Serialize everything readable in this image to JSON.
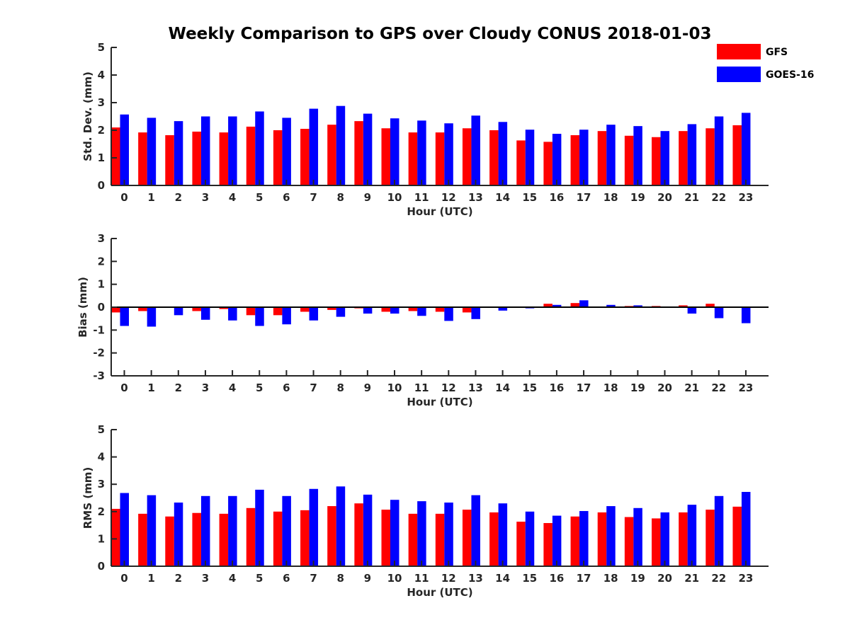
{
  "title": "Weekly Comparison to GPS over Cloudy CONUS 2018-01-03",
  "colors": {
    "GFS": "#ff0000",
    "GOES-16": "#0000ff",
    "axis": "#262626"
  },
  "legend": {
    "placement": "top-right",
    "entries": [
      "GFS",
      "GOES-16"
    ]
  },
  "chart_data": [
    {
      "type": "bar",
      "xlabel": "Hour (UTC)",
      "ylabel": "Std. Dev. (mm)",
      "ylim": [
        0,
        5
      ],
      "yticks": [
        0,
        1,
        2,
        3,
        4,
        5
      ],
      "categories": [
        "0",
        "1",
        "2",
        "3",
        "4",
        "5",
        "6",
        "7",
        "8",
        "9",
        "10",
        "11",
        "12",
        "13",
        "14",
        "15",
        "16",
        "17",
        "18",
        "19",
        "20",
        "21",
        "22",
        "23"
      ],
      "series": [
        {
          "name": "GFS",
          "values": [
            2.1,
            1.92,
            1.82,
            1.95,
            1.92,
            2.13,
            2.0,
            2.05,
            2.2,
            2.33,
            2.07,
            1.92,
            1.92,
            2.07,
            2.0,
            1.63,
            1.58,
            1.82,
            1.97,
            1.8,
            1.75,
            1.97,
            2.07,
            2.18
          ]
        },
        {
          "name": "GOES-16",
          "values": [
            2.57,
            2.45,
            2.33,
            2.5,
            2.5,
            2.68,
            2.45,
            2.78,
            2.88,
            2.6,
            2.43,
            2.35,
            2.25,
            2.53,
            2.3,
            2.02,
            1.87,
            2.02,
            2.2,
            2.15,
            1.97,
            2.22,
            2.5,
            2.63
          ]
        }
      ]
    },
    {
      "type": "bar",
      "xlabel": "Hour (UTC)",
      "ylabel": "Bias (mm)",
      "ylim": [
        -3,
        3
      ],
      "yticks": [
        -3,
        -2,
        -1,
        0,
        1,
        2,
        3
      ],
      "categories": [
        "0",
        "1",
        "2",
        "3",
        "4",
        "5",
        "6",
        "7",
        "8",
        "9",
        "10",
        "11",
        "12",
        "13",
        "14",
        "15",
        "16",
        "17",
        "18",
        "19",
        "20",
        "21",
        "22",
        "23"
      ],
      "series": [
        {
          "name": "GFS",
          "values": [
            -0.23,
            -0.17,
            -0.03,
            -0.17,
            -0.08,
            -0.35,
            -0.35,
            -0.2,
            -0.12,
            -0.05,
            -0.2,
            -0.17,
            -0.2,
            -0.23,
            -0.02,
            0.02,
            0.15,
            0.18,
            -0.02,
            0.05,
            0.05,
            0.08,
            0.15,
            0.02
          ]
        },
        {
          "name": "GOES-16",
          "values": [
            -0.82,
            -0.85,
            -0.35,
            -0.55,
            -0.58,
            -0.82,
            -0.75,
            -0.58,
            -0.42,
            -0.28,
            -0.28,
            -0.38,
            -0.6,
            -0.52,
            -0.15,
            -0.05,
            0.1,
            0.3,
            0.1,
            0.08,
            -0.02,
            -0.28,
            -0.48,
            -0.7
          ]
        }
      ]
    },
    {
      "type": "bar",
      "xlabel": "Hour (UTC)",
      "ylabel": "RMS (mm)",
      "ylim": [
        0,
        5
      ],
      "yticks": [
        0,
        1,
        2,
        3,
        4,
        5
      ],
      "categories": [
        "0",
        "1",
        "2",
        "3",
        "4",
        "5",
        "6",
        "7",
        "8",
        "9",
        "10",
        "11",
        "12",
        "13",
        "14",
        "15",
        "16",
        "17",
        "18",
        "19",
        "20",
        "21",
        "22",
        "23"
      ],
      "series": [
        {
          "name": "GFS",
          "values": [
            2.1,
            1.92,
            1.82,
            1.95,
            1.92,
            2.13,
            2.0,
            2.05,
            2.2,
            2.3,
            2.07,
            1.92,
            1.92,
            2.07,
            1.97,
            1.63,
            1.58,
            1.82,
            1.97,
            1.8,
            1.75,
            1.97,
            2.07,
            2.18
          ]
        },
        {
          "name": "GOES-16",
          "values": [
            2.68,
            2.6,
            2.33,
            2.57,
            2.57,
            2.8,
            2.57,
            2.83,
            2.92,
            2.62,
            2.43,
            2.38,
            2.33,
            2.6,
            2.3,
            2.0,
            1.85,
            2.02,
            2.2,
            2.13,
            1.97,
            2.25,
            2.57,
            2.72
          ]
        }
      ]
    }
  ]
}
